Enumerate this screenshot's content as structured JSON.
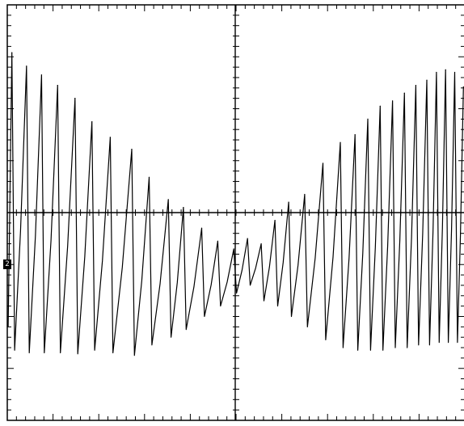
{
  "chart_data": {
    "type": "line",
    "title": "",
    "xlabel": "",
    "ylabel": "",
    "grid": false,
    "axes": {
      "center_crosshair": true,
      "major_x_divisions": 10,
      "major_y_divisions": 8,
      "minor_per_major": 5
    },
    "xlim": [
      0,
      10
    ],
    "ylim": [
      -4,
      4
    ],
    "channel_marker": {
      "text": "2"
    },
    "series": [
      {
        "waveform": "sawtooth",
        "stroke": "#000000",
        "cycles": [
          {
            "t": 0.1,
            "high": 3.08,
            "low": -2.65
          },
          {
            "t": 0.42,
            "high": 2.82,
            "low": -2.7
          },
          {
            "t": 0.75,
            "high": 2.65,
            "low": -2.7
          },
          {
            "t": 1.1,
            "high": 2.45,
            "low": -2.7
          },
          {
            "t": 1.48,
            "high": 2.2,
            "low": -2.72
          },
          {
            "t": 1.85,
            "high": 1.75,
            "low": -2.65
          },
          {
            "t": 2.25,
            "high": 1.45,
            "low": -2.7
          },
          {
            "t": 2.72,
            "high": 1.22,
            "low": -2.75
          },
          {
            "t": 3.1,
            "high": 0.68,
            "low": -2.55
          },
          {
            "t": 3.52,
            "high": 0.25,
            "low": -2.4
          },
          {
            "t": 3.85,
            "high": 0.1,
            "low": -2.25
          },
          {
            "t": 4.25,
            "high": -0.3,
            "low": -2.0
          },
          {
            "t": 4.6,
            "high": -0.55,
            "low": -1.8
          },
          {
            "t": 4.95,
            "high": -0.7,
            "low": -1.55
          },
          {
            "t": 5.25,
            "high": -0.5,
            "low": -1.4
          },
          {
            "t": 5.55,
            "high": -0.6,
            "low": -1.7
          },
          {
            "t": 5.85,
            "high": -0.15,
            "low": -1.8
          },
          {
            "t": 6.15,
            "high": 0.2,
            "low": -2.0
          },
          {
            "t": 6.5,
            "high": 0.35,
            "low": -2.2
          },
          {
            "t": 6.9,
            "high": 0.95,
            "low": -2.45
          },
          {
            "t": 7.28,
            "high": 1.35,
            "low": -2.6
          },
          {
            "t": 7.6,
            "high": 1.5,
            "low": -2.65
          },
          {
            "t": 7.88,
            "high": 1.8,
            "low": -2.65
          },
          {
            "t": 8.15,
            "high": 2.05,
            "low": -2.65
          },
          {
            "t": 8.42,
            "high": 2.15,
            "low": -2.6
          },
          {
            "t": 8.68,
            "high": 2.3,
            "low": -2.6
          },
          {
            "t": 8.93,
            "high": 2.45,
            "low": -2.55
          },
          {
            "t": 9.17,
            "high": 2.55,
            "low": -2.55
          },
          {
            "t": 9.38,
            "high": 2.7,
            "low": -2.5
          },
          {
            "t": 9.58,
            "high": 2.75,
            "low": -2.5
          },
          {
            "t": 9.78,
            "high": 2.7,
            "low": -2.5
          }
        ]
      }
    ]
  }
}
